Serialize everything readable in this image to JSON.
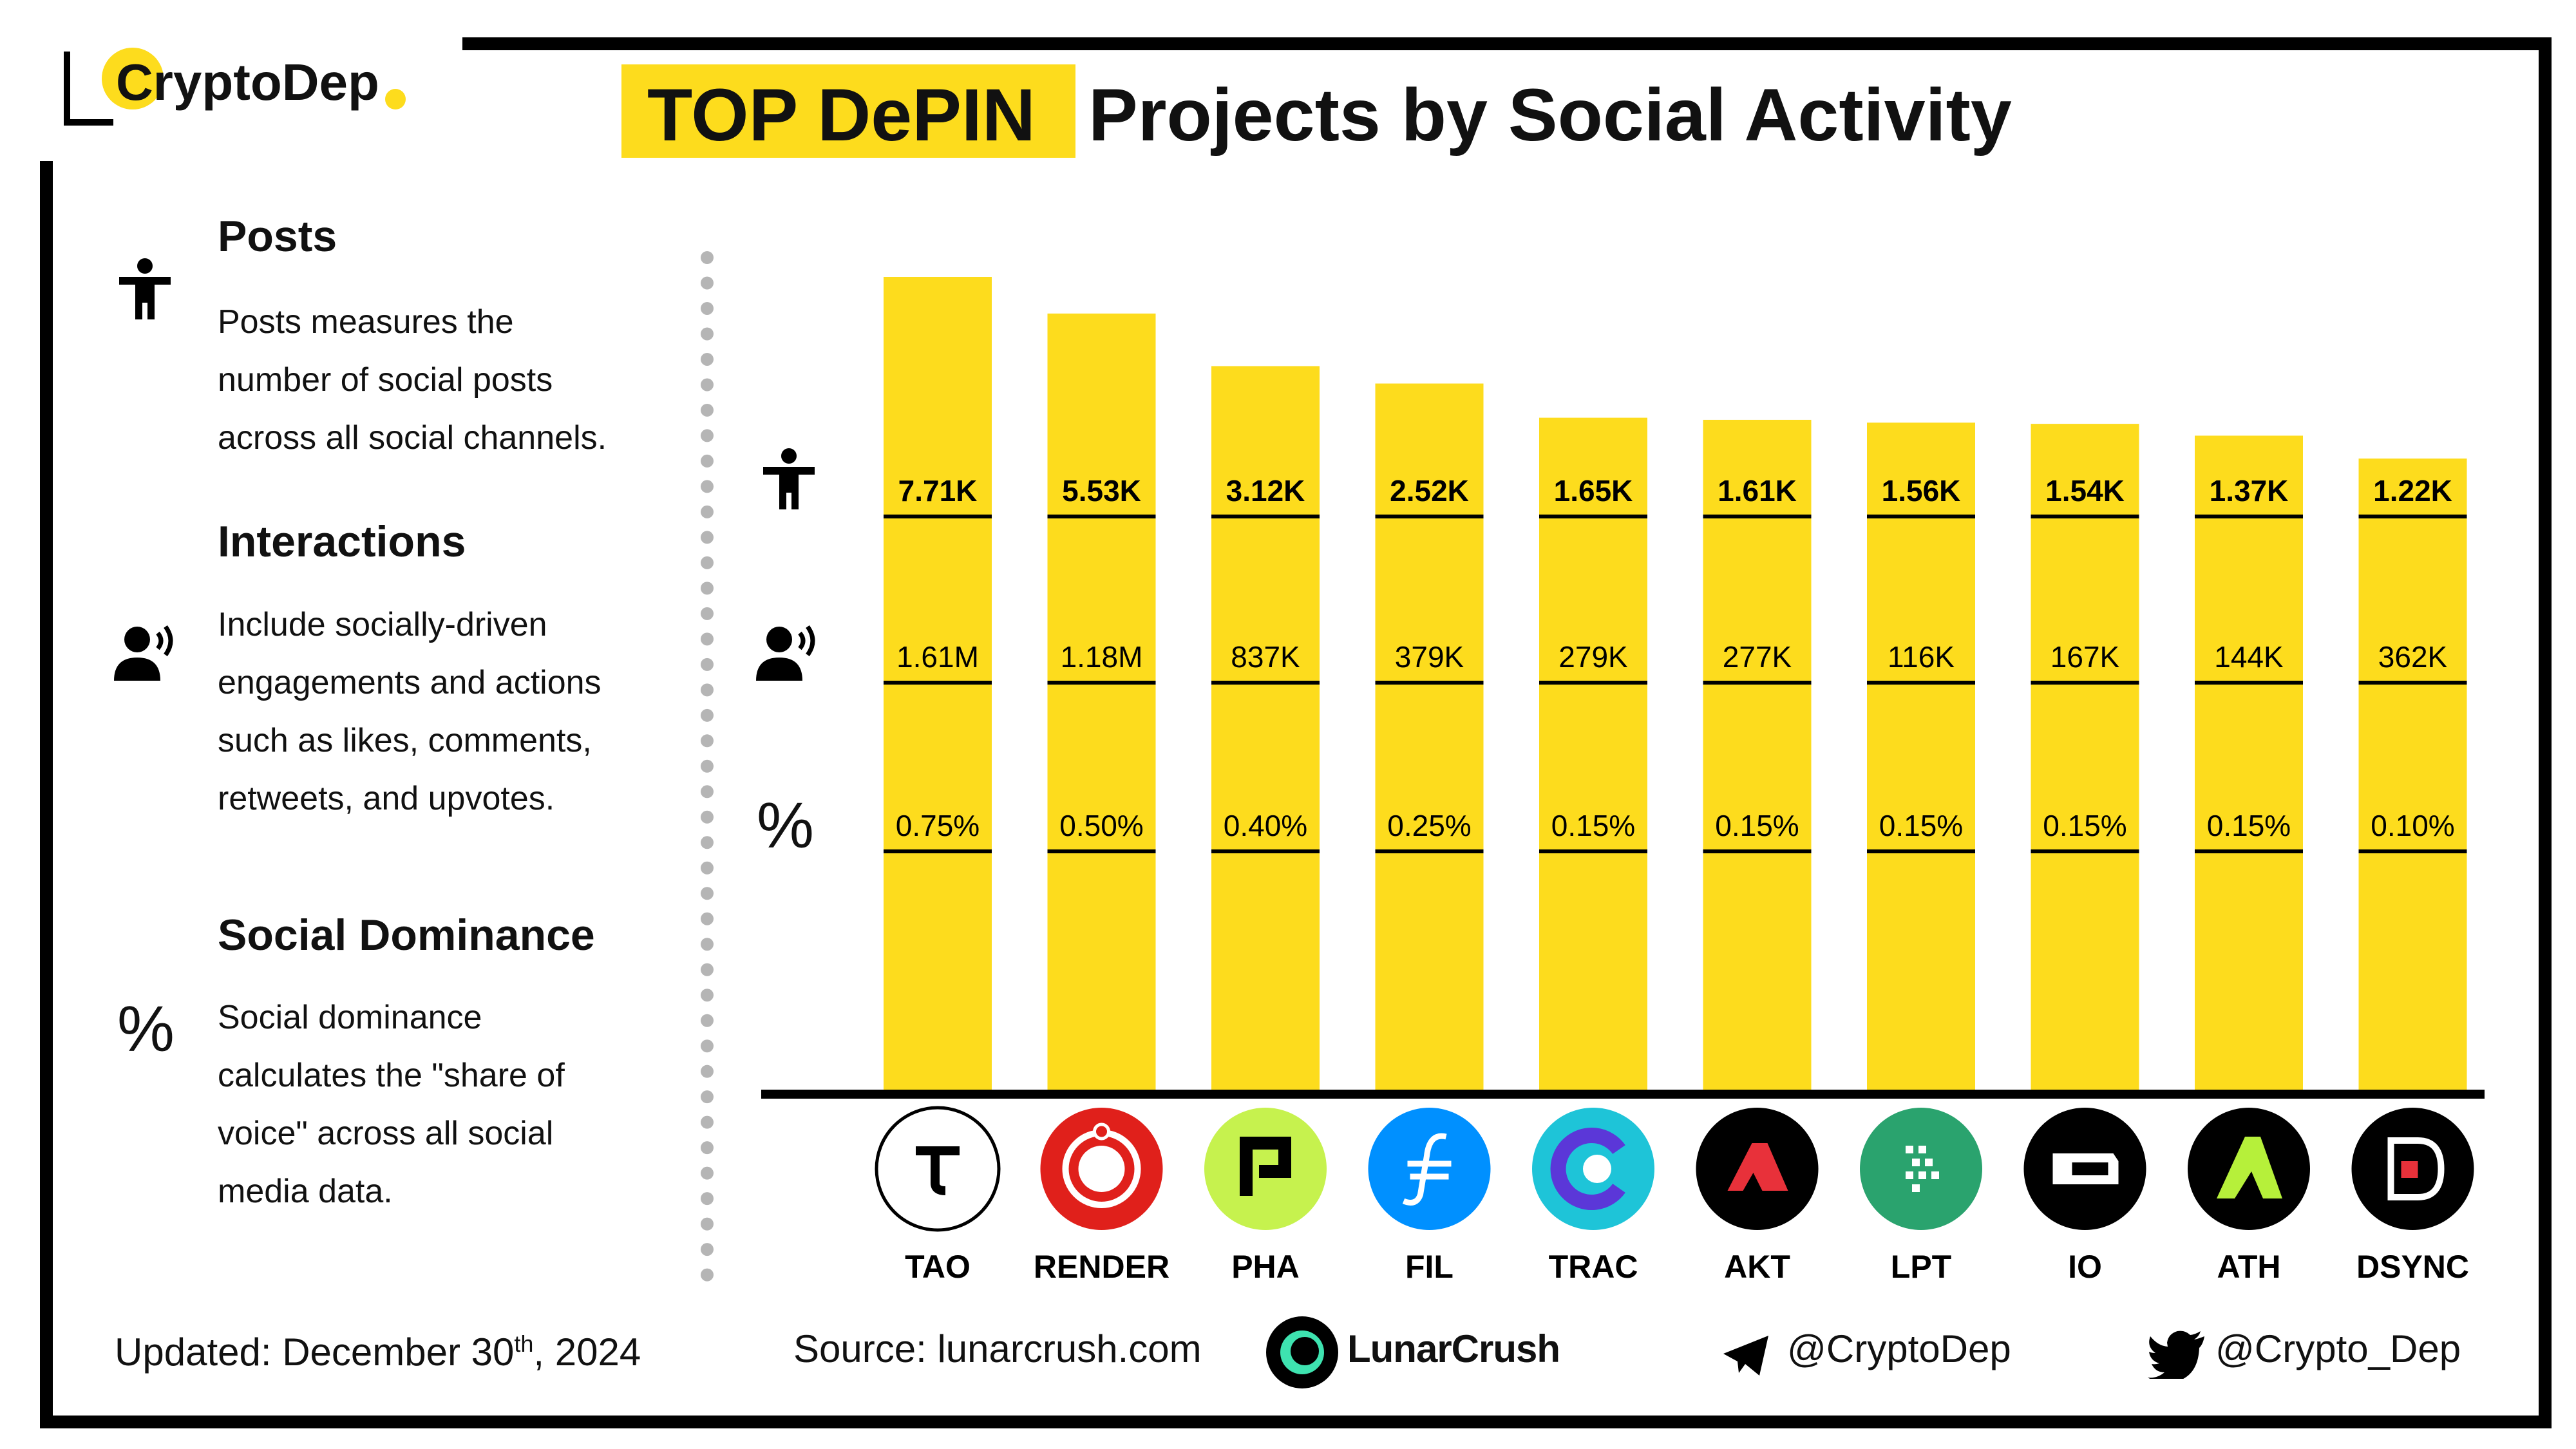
{
  "brand": {
    "name": "CryptoDep"
  },
  "title": {
    "highlight": "TOP DePIN",
    "rest": "Projects by Social Activity"
  },
  "legend": [
    {
      "icon": "person-icon",
      "heading": "Posts",
      "lines": [
        "Posts measures the",
        "number of social posts",
        "across all social channels."
      ]
    },
    {
      "icon": "speaking-person-icon",
      "heading": "Interactions",
      "lines": [
        "Include socially-driven",
        "engagements and actions",
        "such as likes, comments,",
        "retweets, and upvotes."
      ]
    },
    {
      "icon": "percent-icon",
      "heading": "Social Dominance",
      "lines": [
        "Social dominance",
        "calculates the \"share of",
        "voice\" across all social",
        "media data."
      ]
    }
  ],
  "footer": {
    "updated_label": "Updated:",
    "updated_value": "December 30",
    "updated_sup": "th",
    "updated_year": ", 2024",
    "source_label": "Source:",
    "source_value": "lunarcrush.com",
    "source_brand": "LunarCrush",
    "telegram": "@CryptoDep",
    "twitter": "@Crypto_Dep"
  },
  "colors": {
    "bar": "#fddc1d",
    "frame": "#000000",
    "highlight": "#fddc1d"
  },
  "chart_data": {
    "type": "bar",
    "categories": [
      "TAO",
      "RENDER",
      "PHA",
      "FIL",
      "TRAC",
      "AKT",
      "LPT",
      "IO",
      "ATH",
      "DSYNC"
    ],
    "series": [
      {
        "name": "Posts",
        "values": [
          7.71,
          5.53,
          3.12,
          2.52,
          1.65,
          1.61,
          1.56,
          1.54,
          1.37,
          1.22
        ],
        "labels": [
          "7.71K",
          "5.53K",
          "3.12K",
          "2.52K",
          "1.65K",
          "1.61K",
          "1.56K",
          "1.54K",
          "1.37K",
          "1.22K"
        ]
      },
      {
        "name": "Interactions",
        "labels": [
          "1.61M",
          "1.18M",
          "837K",
          "379K",
          "279K",
          "277K",
          "116K",
          "167K",
          "144K",
          "362K"
        ]
      },
      {
        "name": "Social Dominance",
        "labels": [
          "0.75%",
          "0.50%",
          "0.40%",
          "0.25%",
          "0.15%",
          "0.15%",
          "0.15%",
          "0.15%",
          "0.15%",
          "0.10%"
        ]
      }
    ],
    "logo_colors": [
      "#ffffff",
      "#e0201b",
      "#c6f24e",
      "#0090ff",
      "#25c0d6",
      "#e8313a",
      "#2aab70",
      "#000000",
      "#2f9e4f",
      "#e8313a"
    ],
    "logo_bg": [
      "#ffffff",
      "#e0201b",
      "#c6f24e",
      "#0090ff",
      "#1ec4d8",
      "#000000",
      "#2aa36e",
      "#000000",
      "#000000",
      "#000000"
    ]
  }
}
